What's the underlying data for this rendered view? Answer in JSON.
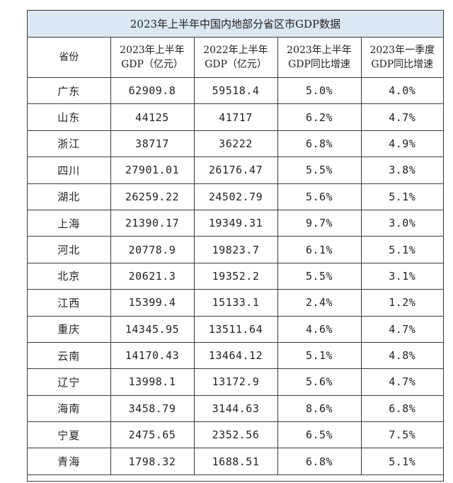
{
  "table": {
    "title": "2023年上半年中国内地部分省区市GDP数据",
    "headers": [
      [
        "省份"
      ],
      [
        "2023年上半年",
        "GDP（亿元）"
      ],
      [
        "2022年上半年",
        "GDP（亿元）"
      ],
      [
        "2023年上半年",
        "GDP同比增速"
      ],
      [
        "2023年一季度",
        "GDP同比增速"
      ]
    ],
    "rows": [
      [
        "广东",
        "62909.8",
        "59518.4",
        "5.0%",
        "4.0%"
      ],
      [
        "山东",
        "44125",
        "41717",
        "6.2%",
        "4.7%"
      ],
      [
        "浙江",
        "38717",
        "36222",
        "6.8%",
        "4.9%"
      ],
      [
        "四川",
        "27901.01",
        "26176.47",
        "5.5%",
        "3.8%"
      ],
      [
        "湖北",
        "26259.22",
        "24502.79",
        "5.6%",
        "5.1%"
      ],
      [
        "上海",
        "21390.17",
        "19349.31",
        "9.7%",
        "3.0%"
      ],
      [
        "河北",
        "20778.9",
        "19823.7",
        "6.1%",
        "5.1%"
      ],
      [
        "北京",
        "20621.3",
        "19352.2",
        "5.5%",
        "3.1%"
      ],
      [
        "江西",
        "15399.4",
        "15133.1",
        "2.4%",
        "1.2%"
      ],
      [
        "重庆",
        "14345.95",
        "13511.64",
        "4.6%",
        "4.7%"
      ],
      [
        "云南",
        "14170.43",
        "13464.12",
        "5.1%",
        "4.8%"
      ],
      [
        "辽宁",
        "13998.1",
        "13172.9",
        "5.6%",
        "4.7%"
      ],
      [
        "海南",
        "3458.79",
        "3144.63",
        "8.6%",
        "6.8%"
      ],
      [
        "宁夏",
        "2475.65",
        "2352.56",
        "6.5%",
        "7.5%"
      ],
      [
        "青海",
        "1798.32",
        "1688.51",
        "6.8%",
        "5.1%"
      ]
    ]
  },
  "colors": {
    "title_background": "#dce7f4",
    "border": "#3a3a3a",
    "text": "#222222"
  }
}
